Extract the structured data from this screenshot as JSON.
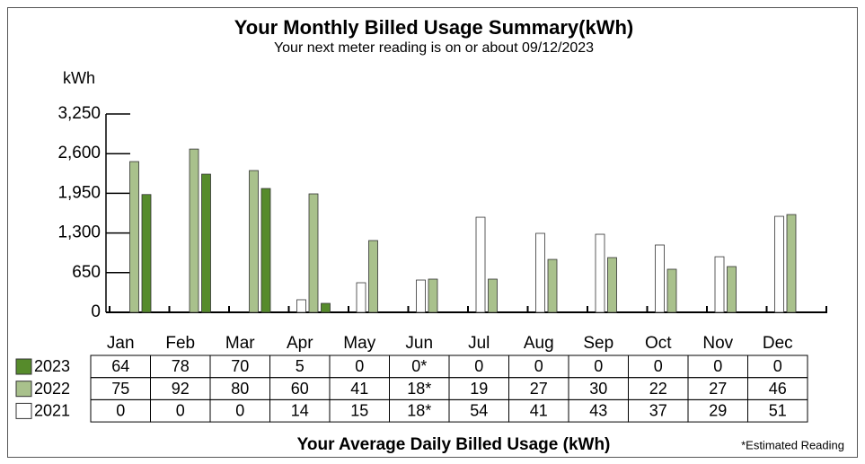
{
  "chart_data": {
    "type": "bar",
    "title": "Your Monthly Billed Usage Summary(kWh)",
    "subtitle": "Your next meter reading is on or about 09/12/2023",
    "y_label": "kWh",
    "categories": [
      "Jan",
      "Feb",
      "Mar",
      "Apr",
      "May",
      "Jun",
      "Jul",
      "Aug",
      "Sep",
      "Oct",
      "Nov",
      "Dec"
    ],
    "series": [
      {
        "name": "2023",
        "color": "#568b2b",
        "values": [
          1930,
          2264,
          2029,
          147,
          0,
          0,
          0,
          0,
          0,
          0,
          0,
          0
        ]
      },
      {
        "name": "2022",
        "color": "#a9c18c",
        "values": [
          2470,
          2675,
          2323,
          1941,
          1176,
          544,
          544,
          867,
          897,
          706,
          750,
          1602
        ]
      },
      {
        "name": "2021",
        "color": "#ffffff",
        "values": [
          0,
          0,
          0,
          206,
          485,
          529,
          1558,
          1294,
          1279,
          1103,
          911,
          1573
        ]
      }
    ],
    "ylim": [
      0,
      3250
    ],
    "yticks": [
      0,
      650,
      {
        "value": 1300,
        "label": "1,300"
      },
      {
        "value": 1950,
        "label": "1,950"
      },
      {
        "value": 2600,
        "label": "2,600"
      },
      {
        "value": 3250,
        "label": "3,250"
      }
    ]
  },
  "daily_usage": {
    "title": "Your Average Daily Billed Usage (kWh)",
    "note": "*Estimated Reading",
    "rows": [
      [
        64,
        78,
        70,
        5,
        0,
        "0*",
        0,
        0,
        0,
        0,
        0,
        0
      ],
      [
        75,
        92,
        80,
        60,
        41,
        "18*",
        19,
        27,
        30,
        22,
        27,
        46
      ],
      [
        0,
        0,
        0,
        14,
        15,
        "18*",
        54,
        41,
        43,
        37,
        29,
        51
      ]
    ]
  }
}
